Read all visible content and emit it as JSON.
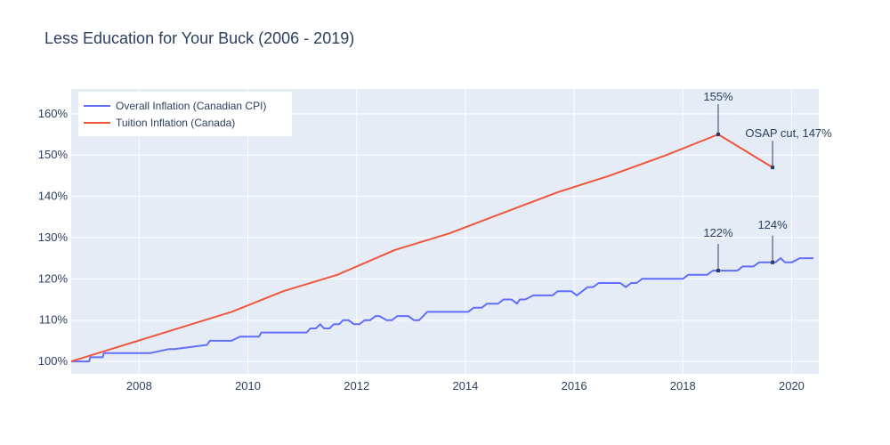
{
  "chart_data": {
    "type": "line",
    "title": "Less Education for Your Buck (2006 - 2019)",
    "xlim": [
      2006.75,
      2020.5
    ],
    "ylim": [
      97,
      166
    ],
    "x_ticks": [
      2008,
      2010,
      2012,
      2014,
      2016,
      2018,
      2020
    ],
    "y_ticks": [
      100,
      110,
      120,
      130,
      140,
      150,
      160
    ],
    "y_tick_suffix": "%",
    "grid": true,
    "legend_position": "top-left",
    "colors": {
      "cpi": "#636efa",
      "tuition": "#ef553b",
      "background": "#e5ecf6",
      "text": "#2a3f5f"
    },
    "series": [
      {
        "name": "Overall Inflation (Canadian CPI)",
        "x": [
          2006.75,
          2007.08,
          2007.1,
          2007.33,
          2007.35,
          2008.1,
          2008.2,
          2008.55,
          2008.65,
          2009.25,
          2009.3,
          2009.7,
          2009.85,
          2010.2,
          2010.25,
          2011.08,
          2011.15,
          2011.25,
          2011.33,
          2011.4,
          2011.5,
          2011.58,
          2011.68,
          2011.75,
          2011.85,
          2011.95,
          2012.05,
          2012.15,
          2012.25,
          2012.35,
          2012.42,
          2012.55,
          2012.65,
          2012.75,
          2012.85,
          2012.95,
          2013.05,
          2013.15,
          2013.3,
          2013.4,
          2013.55,
          2013.65,
          2014.05,
          2014.15,
          2014.3,
          2014.4,
          2014.6,
          2014.7,
          2014.85,
          2014.95,
          2015.0,
          2015.1,
          2015.25,
          2015.6,
          2015.7,
          2015.95,
          2016.05,
          2016.15,
          2016.25,
          2016.35,
          2016.45,
          2016.55,
          2016.85,
          2016.95,
          2017.05,
          2017.15,
          2017.25,
          2017.35,
          2018.0,
          2018.1,
          2018.2,
          2018.45,
          2018.55,
          2018.65,
          2019.0,
          2019.1,
          2019.3,
          2019.4,
          2019.6,
          2019.7,
          2019.8,
          2019.88,
          2020.0,
          2020.15,
          2020.25,
          2020.4
        ],
        "values": [
          100,
          100,
          101,
          101,
          102,
          102,
          102,
          103,
          103,
          104,
          105,
          105,
          106,
          106,
          107,
          107,
          108,
          108,
          109,
          108,
          108,
          109,
          109,
          110,
          110,
          109,
          109,
          110,
          110,
          111,
          111,
          110,
          110,
          111,
          111,
          111,
          110,
          110,
          112,
          112,
          112,
          112,
          112,
          113,
          113,
          114,
          114,
          115,
          115,
          114,
          115,
          115,
          116,
          116,
          117,
          117,
          116,
          117,
          118,
          118,
          119,
          119,
          119,
          118,
          119,
          119,
          120,
          120,
          120,
          121,
          121,
          121,
          122,
          122,
          122,
          123,
          123,
          124,
          124,
          124,
          125,
          124,
          124,
          125,
          125,
          125
        ]
      },
      {
        "name": "Tuition Inflation (Canada)",
        "x": [
          2006.75,
          2009.7,
          2010.65,
          2011.65,
          2012.7,
          2013.7,
          2014.7,
          2015.7,
          2016.65,
          2017.7,
          2018.65,
          2019.65
        ],
        "values": [
          100,
          112,
          117,
          121,
          127,
          131,
          136,
          141,
          145,
          150,
          155,
          147
        ]
      }
    ],
    "annotations": [
      {
        "text": "155%",
        "x": 2018.65,
        "y": 155
      },
      {
        "text": "OSAP cut, 147%",
        "x": 2019.65,
        "y": 147
      },
      {
        "text": "122%",
        "x": 2018.65,
        "y": 122
      },
      {
        "text": "124%",
        "x": 2019.65,
        "y": 124
      }
    ]
  }
}
